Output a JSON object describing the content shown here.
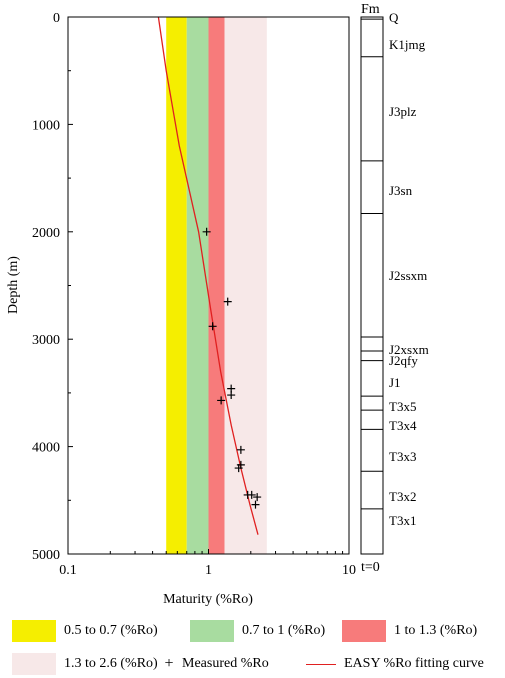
{
  "chart_data": {
    "type": "scatter",
    "xlabel": "Maturity (%Ro)",
    "ylabel": "Depth (m)",
    "x_scale": "log",
    "xlim": [
      0.1,
      10
    ],
    "ylim": [
      0,
      5000
    ],
    "y_inverted": true,
    "x_ticks": [
      "0.1",
      "1",
      "10"
    ],
    "y_ticks": [
      "0",
      "1000",
      "2000",
      "3000",
      "4000",
      "5000"
    ],
    "grid": false,
    "bands": [
      {
        "label": "0.5 to 0.7 (%Ro)",
        "x_range": [
          0.5,
          0.7
        ],
        "color": "#f5ee00"
      },
      {
        "label": "0.7 to 1 (%Ro)",
        "x_range": [
          0.7,
          1.0
        ],
        "color": "#a8dca0"
      },
      {
        "label": "1 to 1.3 (%Ro)",
        "x_range": [
          1.0,
          1.3
        ],
        "color": "#f77b7b"
      },
      {
        "label": "1.3 to 2.6 (%Ro)",
        "x_range": [
          1.3,
          2.6
        ],
        "color": "#f7e8e8"
      }
    ],
    "series": [
      {
        "name": "Measured %Ro",
        "marker": "+",
        "color": "#000000",
        "points": [
          {
            "x": 0.97,
            "y": 2000
          },
          {
            "x": 1.37,
            "y": 2650
          },
          {
            "x": 1.07,
            "y": 2880
          },
          {
            "x": 1.45,
            "y": 3460
          },
          {
            "x": 1.45,
            "y": 3520
          },
          {
            "x": 1.23,
            "y": 3570
          },
          {
            "x": 1.7,
            "y": 4030
          },
          {
            "x": 1.7,
            "y": 4170
          },
          {
            "x": 1.64,
            "y": 4200
          },
          {
            "x": 1.9,
            "y": 4450
          },
          {
            "x": 2.03,
            "y": 4450
          },
          {
            "x": 2.22,
            "y": 4470
          },
          {
            "x": 2.16,
            "y": 4540
          }
        ]
      },
      {
        "name": "EASY %Ro fitting curve",
        "type": "line",
        "color": "#e02020",
        "points": [
          {
            "x": 0.44,
            "y": 0
          },
          {
            "x": 0.5,
            "y": 500
          },
          {
            "x": 0.62,
            "y": 1200
          },
          {
            "x": 0.85,
            "y": 2000
          },
          {
            "x": 1.03,
            "y": 2700
          },
          {
            "x": 1.22,
            "y": 3300
          },
          {
            "x": 1.45,
            "y": 3800
          },
          {
            "x": 1.7,
            "y": 4200
          },
          {
            "x": 1.98,
            "y": 4550
          },
          {
            "x": 2.25,
            "y": 4820
          }
        ]
      }
    ]
  },
  "formations": {
    "header": "Fm",
    "footer": "t=0",
    "units": [
      {
        "name": "Q",
        "top": 0,
        "bottom": 20
      },
      {
        "name": "K1jmg",
        "top": 20,
        "bottom": 370
      },
      {
        "name": "J3plz",
        "top": 370,
        "bottom": 1340
      },
      {
        "name": "J3sn",
        "top": 1340,
        "bottom": 1830
      },
      {
        "name": "J2ssxm",
        "top": 1830,
        "bottom": 2980
      },
      {
        "name": "J2xsxm",
        "top": 2980,
        "bottom": 3110
      },
      {
        "name": "J2qfy",
        "top": 3110,
        "bottom": 3200
      },
      {
        "name": "J1",
        "top": 3200,
        "bottom": 3530
      },
      {
        "name": "T3x5",
        "top": 3530,
        "bottom": 3660
      },
      {
        "name": "T3x4",
        "top": 3660,
        "bottom": 3840
      },
      {
        "name": "T3x3",
        "top": 3840,
        "bottom": 4230
      },
      {
        "name": "T3x2",
        "top": 4230,
        "bottom": 4580
      },
      {
        "name": "T3x1",
        "top": 4580,
        "bottom": 4690
      }
    ]
  },
  "legend": {
    "band1": "0.5 to 0.7 (%Ro)",
    "band2": "0.7 to 1 (%Ro)",
    "band3": "1 to 1.3 (%Ro)",
    "band4": "1.3 to 2.6 (%Ro)",
    "measured_symbol": "+",
    "measured": "Measured %Ro",
    "curve": "EASY %Ro fitting curve"
  }
}
